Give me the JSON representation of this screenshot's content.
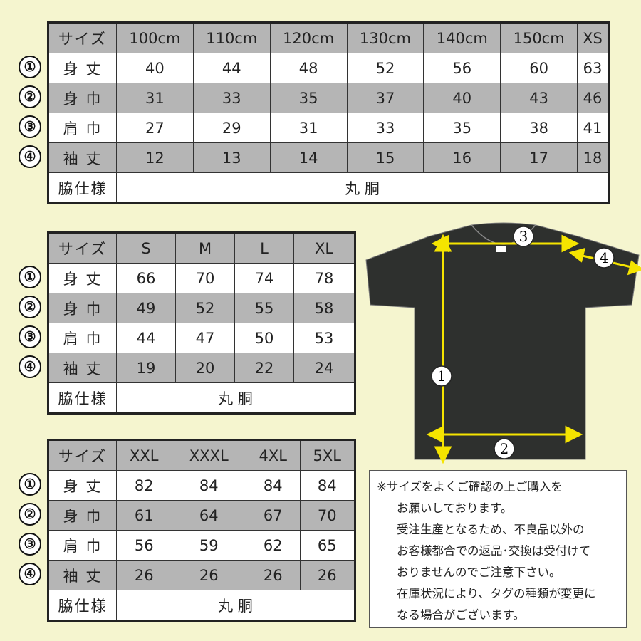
{
  "row_markers": [
    "①",
    "②",
    "③",
    "④"
  ],
  "tables": [
    {
      "header": [
        "サイズ",
        "100cm",
        "110cm",
        "120cm",
        "130cm",
        "140cm",
        "150cm",
        "XS"
      ],
      "rows": [
        [
          "身 丈",
          "40",
          "44",
          "48",
          "52",
          "56",
          "60",
          "63"
        ],
        [
          "身 巾",
          "31",
          "33",
          "35",
          "37",
          "40",
          "43",
          "46"
        ],
        [
          "肩 巾",
          "27",
          "29",
          "31",
          "33",
          "35",
          "38",
          "41"
        ],
        [
          "袖 丈",
          "12",
          "13",
          "14",
          "15",
          "16",
          "17",
          "18"
        ]
      ],
      "side_label": "脇仕様",
      "side_value": "丸 胴"
    },
    {
      "header": [
        "サイズ",
        "S",
        "M",
        "L",
        "XL"
      ],
      "rows": [
        [
          "身 丈",
          "66",
          "70",
          "74",
          "78"
        ],
        [
          "身 巾",
          "49",
          "52",
          "55",
          "58"
        ],
        [
          "肩 巾",
          "44",
          "47",
          "50",
          "53"
        ],
        [
          "袖 丈",
          "19",
          "20",
          "22",
          "24"
        ]
      ],
      "side_label": "脇仕様",
      "side_value": "丸 胴"
    },
    {
      "header": [
        "サイズ",
        "XXL",
        "XXXL",
        "4XL",
        "5XL"
      ],
      "rows": [
        [
          "身 丈",
          "82",
          "84",
          "84",
          "84"
        ],
        [
          "身 巾",
          "61",
          "64",
          "67",
          "70"
        ],
        [
          "肩 巾",
          "56",
          "59",
          "62",
          "65"
        ],
        [
          "袖 丈",
          "26",
          "26",
          "26",
          "26"
        ]
      ],
      "side_label": "脇仕様",
      "side_value": "丸 胴"
    }
  ],
  "diagram": {
    "markers": [
      "1",
      "2",
      "3",
      "4"
    ],
    "shirt_color": "#2e302e",
    "arrow_color": "#f5e400"
  },
  "notes": [
    "※サイズをよくご確認の上ご購入を",
    "お願いしております。",
    "受注生産となるため、不良品以外の",
    "お客様都合での返品･交換は受付けて",
    "おりませんのでご注意下さい。",
    "在庫状況により、タグの種類が変更に",
    "なる場合がございます。"
  ],
  "colors": {
    "background": "#f5f5cf",
    "gray_row": "#b5b5b5"
  }
}
